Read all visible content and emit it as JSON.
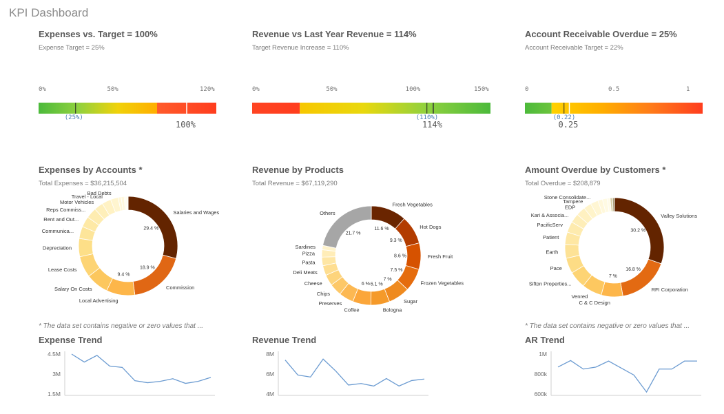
{
  "app": {
    "title": "KPI Dashboard"
  },
  "gauges": [
    {
      "title": "Expenses vs. Target = 100%",
      "subtitle": "Expense Target = 25%",
      "ticks": [
        "0%",
        "50%",
        "120%"
      ],
      "tick_values": [
        0,
        0.5,
        1.2
      ],
      "min": 0,
      "max": 1.2,
      "target": 0.25,
      "target_label": "(25%)",
      "value": 1.0,
      "value_label": "100%",
      "segments": [
        {
          "from": 0,
          "to": 0.8,
          "colors": [
            "#4cba3b",
            "#8fd13f",
            "#f0d20a",
            "#ffae00"
          ]
        },
        {
          "from": 0.8,
          "to": 1.2,
          "colors": [
            "#ff5b2b",
            "#ff3d1e"
          ]
        }
      ]
    },
    {
      "title": "Revenue vs Last Year Revenue = 114%",
      "subtitle": "Target Revenue Increase = 110%",
      "ticks": [
        "0%",
        "50%",
        "100%",
        "150%"
      ],
      "tick_values": [
        0,
        0.5,
        1.0,
        1.5
      ],
      "min": 0,
      "max": 1.5,
      "target": 1.1,
      "target_label": "(110%)",
      "value": 1.14,
      "value_label": "114%",
      "segments": [
        {
          "from": 0,
          "to": 0.3,
          "colors": [
            "#ff4422",
            "#ff3d1e"
          ]
        },
        {
          "from": 0.3,
          "to": 1.5,
          "colors": [
            "#f7c700",
            "#e9d80e",
            "#8fd13f",
            "#4cba3b"
          ]
        }
      ]
    },
    {
      "title": "Account Receivable Overdue = 25%",
      "subtitle": "Account Receivable Target = 22%",
      "ticks": [
        "0",
        "0.5",
        "1"
      ],
      "tick_values": [
        0,
        0.5,
        1.0
      ],
      "min": 0,
      "max": 1,
      "target": 0.22,
      "target_label": "(0.22)",
      "value": 0.25,
      "value_label": "0.25",
      "segments": [
        {
          "from": 0,
          "to": 0.15,
          "colors": [
            "#4cba3b",
            "#6cc43d"
          ]
        },
        {
          "from": 0.15,
          "to": 1,
          "colors": [
            "#ffd200",
            "#ffae00",
            "#ff7a1a",
            "#ff3d1e"
          ]
        }
      ]
    }
  ],
  "donuts": [
    {
      "title": "Expenses by Accounts *",
      "subtitle": "Total Expenses = $36,215,504",
      "note": "* The data set contains negative or zero values that ...",
      "slices": [
        {
          "label": "Salaries and Wages",
          "value": 29.4,
          "color": "#632400",
          "pct": "29.4 %"
        },
        {
          "label": "Commission",
          "value": 18.9,
          "color": "#e06714",
          "pct": "18.9 %"
        },
        {
          "label": "Local Advertising",
          "value": 9.4,
          "color": "#fdb64a",
          "pct": "9.4 %"
        },
        {
          "label": "Salary On Costs",
          "value": 7.5,
          "color": "#fcc75e",
          "pct": ""
        },
        {
          "label": "Lease Costs",
          "value": 7,
          "color": "#fdd474",
          "pct": ""
        },
        {
          "label": "Depreciation",
          "value": 6,
          "color": "#fddf88",
          "pct": ""
        },
        {
          "label": "Communica...",
          "value": 4,
          "color": "#fde59a",
          "pct": ""
        },
        {
          "label": "Rent and Out...",
          "value": 3.5,
          "color": "#fee9a6",
          "pct": ""
        },
        {
          "label": "Reps Commiss...",
          "value": 3.5,
          "color": "#feecb0",
          "pct": ""
        },
        {
          "label": "Motor Vehicles",
          "value": 3,
          "color": "#feefba",
          "pct": ""
        },
        {
          "label": "Travel - Local",
          "value": 3,
          "color": "#fff2c4",
          "pct": ""
        },
        {
          "label": "Bad Debts",
          "value": 2.5,
          "color": "#fff5cf",
          "pct": ""
        },
        {
          "label": "",
          "value": 1,
          "color": "#fff7d8",
          "pct": ""
        },
        {
          "label": "",
          "value": 1,
          "color": "#fff8dd",
          "pct": ""
        },
        {
          "label": "",
          "value": 0.5,
          "color": "#fffae4",
          "pct": ""
        },
        {
          "label": "",
          "value": 0.4,
          "color": "#fffbe9",
          "pct": ""
        },
        {
          "label": "",
          "value": 0.4,
          "color": "#fffcee",
          "pct": ""
        }
      ]
    },
    {
      "title": "Revenue by Products",
      "subtitle": "Total Revenue = $67,119,290",
      "note": "",
      "slices": [
        {
          "label": "Fresh Vegetables",
          "value": 11.6,
          "color": "#6a2500",
          "pct": "11.6 %"
        },
        {
          "label": "Hot Dogs",
          "value": 9.3,
          "color": "#b23c00",
          "pct": "9.3 %"
        },
        {
          "label": "Fresh Fruit",
          "value": 8.6,
          "color": "#d65200",
          "pct": "8.6 %"
        },
        {
          "label": "Frozen Vegetables",
          "value": 7.5,
          "color": "#e56c0d",
          "pct": "7.5 %"
        },
        {
          "label": "Sugar",
          "value": 7,
          "color": "#ef8a1f",
          "pct": "7 %"
        },
        {
          "label": "Bologna",
          "value": 6.1,
          "color": "#f59a2a",
          "pct": "6.1 %"
        },
        {
          "label": "Coffee",
          "value": 6,
          "color": "#fba63a",
          "pct": "6 %"
        },
        {
          "label": "Preserves",
          "value": 4.8,
          "color": "#fcb852",
          "pct": ""
        },
        {
          "label": "Chips",
          "value": 4,
          "color": "#fdc868",
          "pct": ""
        },
        {
          "label": "Cheese",
          "value": 3.6,
          "color": "#fdd47c",
          "pct": ""
        },
        {
          "label": "Deli Meats",
          "value": 3.2,
          "color": "#fede91",
          "pct": ""
        },
        {
          "label": "Pasta",
          "value": 2.8,
          "color": "#fee6a4",
          "pct": ""
        },
        {
          "label": "Pizza",
          "value": 2.4,
          "color": "#ffedb8",
          "pct": ""
        },
        {
          "label": "Sardines",
          "value": 1.4,
          "color": "#fff3cb",
          "pct": ""
        },
        {
          "label": "Others",
          "value": 21.7,
          "color": "#a6a6a6",
          "pct": "21.7 %"
        }
      ]
    },
    {
      "title": "Amount Overdue by Customers *",
      "subtitle": "Total Overdue = $208,879",
      "note": "* The data set contains negative or zero values that ...",
      "slices": [
        {
          "label": "Valley Solutions",
          "value": 30.2,
          "color": "#632400",
          "pct": "30.2 %"
        },
        {
          "label": "RFI Corporation",
          "value": 16.8,
          "color": "#e36a12",
          "pct": "16.8 %"
        },
        {
          "label": "C & C Design",
          "value": 7,
          "color": "#fdb64a",
          "pct": "7 %"
        },
        {
          "label": "Venred",
          "value": 6.5,
          "color": "#fdc860",
          "pct": ""
        },
        {
          "label": "Sifton Properties...",
          "value": 5.5,
          "color": "#fdd474",
          "pct": ""
        },
        {
          "label": "Pace",
          "value": 5,
          "color": "#fddc85",
          "pct": ""
        },
        {
          "label": "Earth",
          "value": 4.5,
          "color": "#fde296",
          "pct": ""
        },
        {
          "label": "Patient",
          "value": 4,
          "color": "#fee7a3",
          "pct": ""
        },
        {
          "label": "PacificServ",
          "value": 3.5,
          "color": "#feebae",
          "pct": ""
        },
        {
          "label": "Kari & Associa...",
          "value": 3,
          "color": "#feeeb8",
          "pct": ""
        },
        {
          "label": "EDP",
          "value": 3,
          "color": "#fff1c1",
          "pct": ""
        },
        {
          "label": "Tampere",
          "value": 2.5,
          "color": "#fff4ca",
          "pct": ""
        },
        {
          "label": "Stone Consolidate...",
          "value": 2.5,
          "color": "#fff6d3",
          "pct": ""
        },
        {
          "label": "",
          "value": 1.5,
          "color": "#fff8dc",
          "pct": ""
        },
        {
          "label": "",
          "value": 1.5,
          "color": "#fffae3",
          "pct": ""
        },
        {
          "label": "",
          "value": 1,
          "color": "#fffbe9",
          "pct": ""
        },
        {
          "label": "",
          "value": 0.8,
          "color": "#d8d0a8",
          "pct": ""
        },
        {
          "label": "",
          "value": 0.6,
          "color": "#a89c78",
          "pct": ""
        }
      ]
    }
  ],
  "trends": [
    {
      "title": "Expense Trend",
      "yticks": [
        "4.5M",
        "3M",
        "1.5M"
      ],
      "ytick_values": [
        4.5,
        3,
        1.5
      ],
      "ymin": 1.5,
      "ymax": 4.5,
      "values": [
        4.5,
        3.9,
        4.4,
        3.6,
        3.5,
        2.5,
        2.35,
        2.45,
        2.65,
        2.3,
        2.45,
        2.75
      ]
    },
    {
      "title": "Revenue Trend",
      "yticks": [
        "8M",
        "6M",
        "4M"
      ],
      "ytick_values": [
        8,
        6,
        4
      ],
      "ymin": 4,
      "ymax": 8,
      "values": [
        7.4,
        5.9,
        5.7,
        7.5,
        6.3,
        4.9,
        5.05,
        4.8,
        5.55,
        4.8,
        5.35,
        5.5
      ]
    },
    {
      "title": "AR Trend",
      "yticks": [
        "1M",
        "800k",
        "600k"
      ],
      "ytick_values": [
        1000,
        800,
        600
      ],
      "ymin": 600,
      "ymax": 1000,
      "values": [
        870,
        935,
        850,
        870,
        930,
        860,
        790,
        620,
        850,
        850,
        930,
        930
      ]
    }
  ],
  "colors": {
    "trend_line": "#6b9bd1",
    "target_marker": "#222222",
    "value_marker": "#ffffff"
  }
}
